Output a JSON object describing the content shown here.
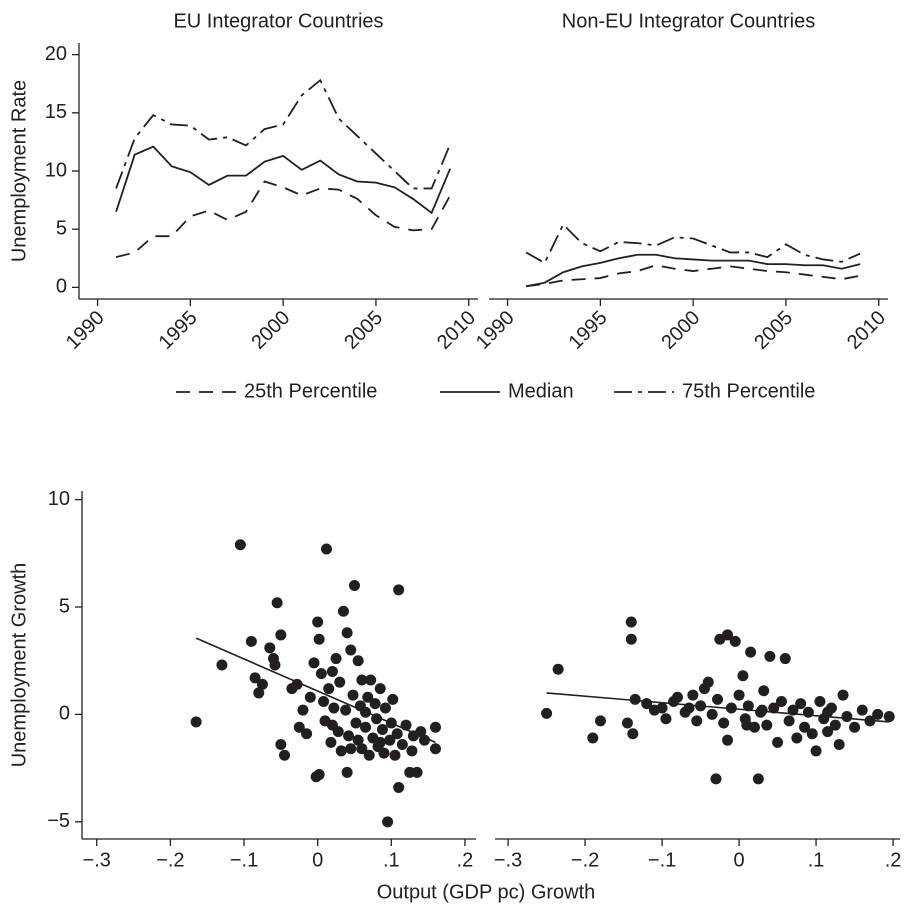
{
  "chart_data": [
    {
      "type": "line",
      "title": "EU Integrator Countries",
      "y_label": "Unemployment Rate",
      "x": [
        1991,
        1992,
        1993,
        1994,
        1995,
        1996,
        1997,
        1998,
        1999,
        2000,
        2001,
        2002,
        2003,
        2004,
        2005,
        2006,
        2007,
        2008,
        2009
      ],
      "series": [
        {
          "name": "25th Percentile",
          "color": "#231f20",
          "dash": "14 9",
          "values": [
            2.6,
            3.0,
            4.4,
            4.4,
            6.1,
            6.6,
            5.8,
            6.5,
            9.1,
            8.6,
            7.9,
            8.5,
            8.4,
            7.6,
            6.2,
            5.2,
            4.9,
            5.0,
            7.9
          ]
        },
        {
          "name": "Median",
          "color": "#231f20",
          "dash": "none",
          "values": [
            6.5,
            11.4,
            12.1,
            10.4,
            9.9,
            8.8,
            9.6,
            9.6,
            10.8,
            11.3,
            10.1,
            10.9,
            9.7,
            9.1,
            9.0,
            8.6,
            7.6,
            6.4,
            10.2
          ]
        },
        {
          "name": "75th Percentile",
          "color": "#231f20",
          "dash": "18 6 4 6",
          "values": [
            8.5,
            12.8,
            14.8,
            14.0,
            13.9,
            12.7,
            12.9,
            12.2,
            13.6,
            14.0,
            16.5,
            17.8,
            14.5,
            13.0,
            11.5,
            10.0,
            8.5,
            8.5,
            12.3
          ]
        }
      ],
      "xlim": [
        1989,
        2010.5
      ],
      "xticks": [
        1990,
        1995,
        2000,
        2005,
        2010
      ],
      "ylim": [
        -1,
        21
      ],
      "yticks": [
        0,
        5,
        10,
        15,
        20
      ]
    },
    {
      "type": "line",
      "title": "Non-EU Integrator Countries",
      "x": [
        1991,
        1992,
        1993,
        1994,
        1995,
        1996,
        1997,
        1998,
        1999,
        2000,
        2001,
        2002,
        2003,
        2004,
        2005,
        2006,
        2007,
        2008,
        2009
      ],
      "series": [
        {
          "color": "#231f20",
          "dash": "14 9",
          "values": [
            0.1,
            0.3,
            0.6,
            0.7,
            0.8,
            1.2,
            1.4,
            1.9,
            1.6,
            1.4,
            1.6,
            1.8,
            1.6,
            1.4,
            1.3,
            1.1,
            0.9,
            0.7,
            1.0
          ]
        },
        {
          "color": "#231f20",
          "dash": "none",
          "values": [
            0.1,
            0.4,
            1.3,
            1.8,
            2.1,
            2.5,
            2.8,
            2.8,
            2.5,
            2.4,
            2.3,
            2.3,
            2.3,
            2.0,
            2.0,
            1.9,
            1.9,
            1.6,
            2.0
          ]
        },
        {
          "color": "#231f20",
          "dash": "18 6 4 6",
          "values": [
            3.0,
            2.1,
            5.4,
            3.8,
            3.1,
            3.9,
            3.8,
            3.6,
            4.3,
            4.2,
            3.6,
            3.0,
            3.0,
            2.6,
            3.7,
            2.8,
            2.4,
            2.2,
            2.9
          ]
        }
      ],
      "xlim": [
        1989,
        2010.5
      ],
      "xticks": [
        1990,
        1995,
        2000,
        2005,
        2010
      ],
      "ylim": [
        -1,
        21
      ]
    },
    {
      "type": "scatter",
      "y_label": "Unemployment Growth",
      "x_label": "Output (GDP pc) Growth",
      "color": "#231f20",
      "x": [
        -0.165,
        -0.13,
        -0.105,
        -0.09,
        -0.085,
        -0.08,
        -0.075,
        -0.065,
        -0.06,
        -0.058,
        -0.055,
        -0.05,
        -0.05,
        -0.045,
        -0.035,
        -0.028,
        -0.025,
        -0.02,
        -0.015,
        -0.01,
        -0.005,
        0.0,
        0.002,
        -0.002,
        0.002,
        0.005,
        0.008,
        0.01,
        0.012,
        0.015,
        0.018,
        0.02,
        0.022,
        0.025,
        0.028,
        0.03,
        0.032,
        0.035,
        0.038,
        0.04,
        0.04,
        0.042,
        0.045,
        0.048,
        0.05,
        0.052,
        0.055,
        0.058,
        0.06,
        0.06,
        0.065,
        0.068,
        0.07,
        0.072,
        0.075,
        0.078,
        0.08,
        0.082,
        0.085,
        0.088,
        0.09,
        0.092,
        0.095,
        0.098,
        0.1,
        0.102,
        0.105,
        0.108,
        0.11,
        0.11,
        0.115,
        0.12,
        0.125,
        0.128,
        0.13,
        0.135,
        0.14,
        0.145,
        0.16,
        0.16,
        0.065,
        0.045,
        0.02,
        0.085,
        0.055
      ],
      "y": [
        -0.35,
        2.3,
        7.9,
        3.4,
        1.7,
        1.0,
        1.4,
        3.1,
        2.6,
        2.3,
        5.2,
        3.7,
        -1.4,
        -1.9,
        1.2,
        1.4,
        -0.6,
        0.2,
        -0.9,
        0.8,
        2.4,
        4.3,
        3.5,
        -2.9,
        -2.8,
        1.9,
        0.6,
        -0.3,
        7.7,
        1.2,
        -1.3,
        2.0,
        0.3,
        2.6,
        -0.8,
        1.5,
        -1.7,
        4.8,
        0.2,
        3.8,
        -2.7,
        -1.0,
        3.0,
        0.9,
        6.0,
        -0.4,
        2.5,
        0.4,
        1.6,
        -1.6,
        -0.6,
        0.8,
        -1.9,
        1.6,
        -1.1,
        0.5,
        -0.2,
        -1.5,
        1.2,
        -0.7,
        -1.8,
        0.3,
        -5.0,
        -1.2,
        -0.4,
        0.7,
        -1.9,
        -0.9,
        5.8,
        -3.4,
        -1.4,
        -0.5,
        -2.7,
        -1.7,
        -1.0,
        -2.7,
        -0.8,
        -1.2,
        -0.6,
        -1.6,
        0.1,
        -1.6,
        -0.5,
        -1.3,
        -1.2
      ],
      "fit": {
        "x": [
          -0.165,
          0.16
        ],
        "y": [
          3.55,
          -1.3
        ]
      },
      "xlim": [
        -0.32,
        0.215
      ],
      "xticks": [
        {
          "value": -0.3,
          "label": "−.3"
        },
        {
          "value": -0.2,
          "label": "−.2"
        },
        {
          "value": -0.1,
          "label": "−.1"
        },
        0,
        {
          "value": 0.1,
          "label": ".1"
        },
        {
          "value": 0.2,
          "label": ".2"
        }
      ],
      "ylim": [
        -5.8,
        10.4
      ],
      "yticks": [
        {
          "value": -5,
          "label": "−5"
        },
        0,
        5,
        10
      ]
    },
    {
      "type": "scatter",
      "color": "#231f20",
      "x": [
        -0.25,
        -0.235,
        -0.19,
        -0.18,
        -0.145,
        -0.14,
        -0.14,
        -0.138,
        -0.135,
        -0.12,
        -0.11,
        -0.1,
        -0.095,
        -0.085,
        -0.08,
        -0.07,
        -0.06,
        -0.055,
        -0.05,
        -0.045,
        -0.04,
        -0.035,
        -0.03,
        -0.028,
        -0.025,
        -0.02,
        -0.015,
        -0.015,
        -0.01,
        -0.005,
        0.0,
        0.005,
        0.008,
        0.012,
        0.015,
        0.02,
        0.025,
        0.028,
        0.032,
        0.036,
        0.04,
        0.045,
        0.05,
        0.055,
        0.06,
        0.065,
        0.07,
        0.075,
        0.08,
        0.085,
        0.09,
        0.095,
        0.1,
        0.105,
        0.11,
        0.115,
        0.12,
        0.125,
        0.13,
        0.135,
        0.14,
        0.15,
        0.16,
        0.17,
        0.18,
        0.195,
        0.03,
        -0.065,
        0.01,
        0.115
      ],
      "y": [
        0.05,
        2.1,
        -1.1,
        -0.3,
        -0.4,
        4.3,
        3.5,
        -0.9,
        0.7,
        0.5,
        0.2,
        0.3,
        -0.2,
        0.6,
        0.8,
        0.1,
        0.9,
        -0.3,
        0.4,
        1.2,
        1.5,
        0.0,
        -3.0,
        0.7,
        3.5,
        -0.4,
        3.7,
        -1.2,
        0.3,
        3.4,
        0.9,
        1.8,
        -0.2,
        0.4,
        2.9,
        -0.6,
        -3.0,
        0.1,
        1.1,
        -0.5,
        2.7,
        0.3,
        -1.3,
        0.6,
        2.6,
        -0.3,
        0.2,
        -1.1,
        0.5,
        -0.6,
        0.1,
        -0.9,
        -1.7,
        0.6,
        -0.2,
        -0.8,
        0.3,
        -0.5,
        -1.4,
        0.9,
        -0.1,
        -0.6,
        0.2,
        -0.3,
        0.0,
        -0.1,
        0.2,
        0.3,
        -0.5,
        0.1
      ],
      "fit": {
        "x": [
          -0.25,
          0.195
        ],
        "y": [
          1.0,
          -0.35
        ]
      },
      "xlim": [
        -0.317,
        0.209
      ],
      "xticks": [
        {
          "value": -0.3,
          "label": "−.3"
        },
        {
          "value": -0.2,
          "label": "−.2"
        },
        {
          "value": -0.1,
          "label": "−.1"
        },
        0,
        {
          "value": 0.1,
          "label": ".1"
        },
        {
          "value": 0.2,
          "label": ".2"
        }
      ],
      "ylim": [
        -5.8,
        10.4
      ]
    }
  ]
}
